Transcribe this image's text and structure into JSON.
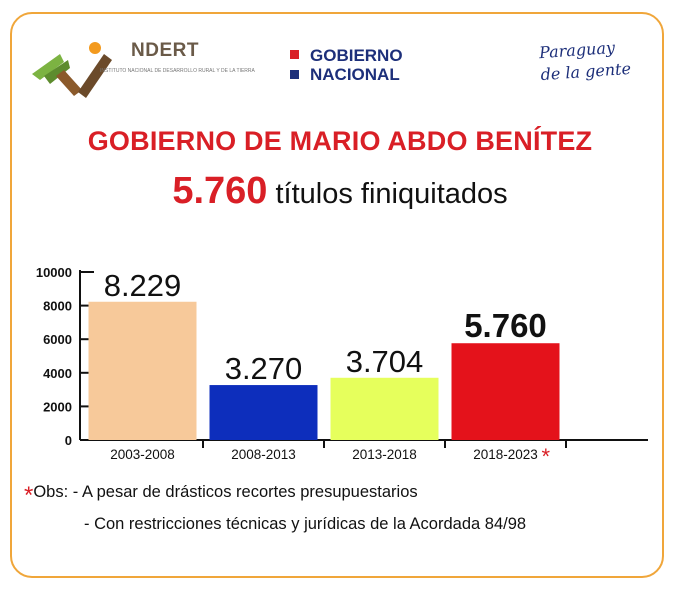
{
  "header": {
    "indert_name": "NDERT",
    "indert_sub": "INSTITUTO NACIONAL DE DESARROLLO RURAL Y DE LA TIERRA",
    "gobierno_line1": "GOBIERNO",
    "gobierno_line2": "NACIONAL",
    "slogan_line1": "Paraguay",
    "slogan_line2": "de la gente"
  },
  "colors": {
    "accent_red": "#d91f26",
    "frame_orange": "#f0a63a",
    "navy": "#1d2f7a"
  },
  "chart_data": {
    "type": "bar",
    "title": "GOBIERNO DE MARIO ABDO BENÍTEZ",
    "subtitle_number": "5.760",
    "subtitle_text": "títulos finiquitados",
    "categories": [
      "2003-2008",
      "2008-2013",
      "2013-2018",
      "2018-2023"
    ],
    "values": [
      8229,
      3270,
      3704,
      5760
    ],
    "value_labels": [
      "8.229",
      "3.270",
      "3.704",
      "5.760"
    ],
    "bar_colors": [
      "#f7c99a",
      "#0d2ebc",
      "#e6ff5c",
      "#e4121b"
    ],
    "highlight_index": 3,
    "category_marker": "*",
    "ylim": [
      0,
      10000
    ],
    "yticks": [
      "0",
      "2000",
      "4000",
      "6000",
      "8000",
      "10000"
    ],
    "xlabel": "",
    "ylabel": "",
    "grid": false
  },
  "footnote": {
    "marker": "*",
    "label": "Obs:",
    "line1": " - A pesar de drásticos recortes presupuestarios",
    "line2": "- Con restricciones técnicas y jurídicas de la Acordada 84/98"
  }
}
